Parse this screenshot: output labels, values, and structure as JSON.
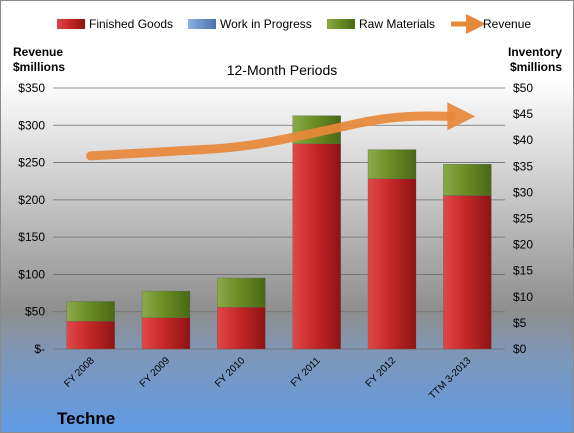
{
  "chart_data": {
    "type": "bar",
    "title": "12-Month Periods",
    "company": "Techne",
    "categories": [
      "FY 2008",
      "FY 2009",
      "FY 2010",
      "FY 2011",
      "FY 2012",
      "TTM 3-2013"
    ],
    "left_axis": {
      "label_line1": "Revenue",
      "label_line2": "$millions",
      "ticks": [
        "$-",
        "$50",
        "$100",
        "$150",
        "$200",
        "$250",
        "$300",
        "$350"
      ],
      "ylim": [
        0,
        350
      ]
    },
    "right_axis": {
      "label_line1": "Inventory",
      "label_line2": "$millions",
      "ticks": [
        "$0",
        "$5",
        "$10",
        "$15",
        "$20",
        "$25",
        "$30",
        "$35",
        "$40",
        "$45",
        "$50"
      ],
      "ylim": [
        0,
        50
      ]
    },
    "series": [
      {
        "name": "Finished Goods",
        "axis": "right",
        "kind": "stacked-bar",
        "color": "#c62828",
        "values": [
          5.3,
          6.0,
          8.0,
          39.3,
          32.6,
          29.4
        ]
      },
      {
        "name": "Work in Progress",
        "axis": "right",
        "kind": "stacked-bar",
        "color": "#5b86c4",
        "values": [
          0,
          0,
          0,
          0,
          0,
          0
        ]
      },
      {
        "name": "Raw Materials",
        "axis": "right",
        "kind": "stacked-bar",
        "color": "#6b8e23",
        "values": [
          3.8,
          5.1,
          5.6,
          5.4,
          5.6,
          6.0
        ]
      },
      {
        "name": "Revenue",
        "axis": "left",
        "kind": "line",
        "color": "#e8883a",
        "values": [
          259,
          265,
          270,
          290,
          313,
          312
        ]
      }
    ],
    "legend_position": "top",
    "grid": true
  }
}
